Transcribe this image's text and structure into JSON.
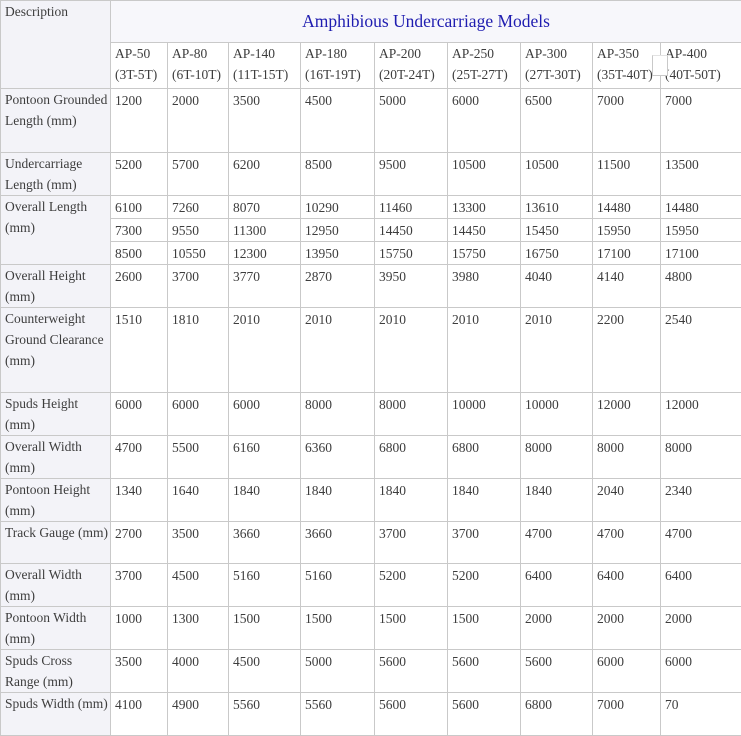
{
  "chart_data": {
    "type": "table",
    "title": "Amphibious Undercarriage Models",
    "corner": "Description",
    "columns": [
      {
        "model": "AP-50",
        "range": "(3T-5T)"
      },
      {
        "model": "AP-80",
        "range": "(6T-10T)"
      },
      {
        "model": "AP-140",
        "range": "(11T-15T)"
      },
      {
        "model": "AP-180",
        "range": "(16T-19T)"
      },
      {
        "model": "AP-200",
        "range": "(20T-24T)"
      },
      {
        "model": "AP-250",
        "range": "(25T-27T)"
      },
      {
        "model": "AP-300",
        "range": "(27T-30T)"
      },
      {
        "model": "AP-350",
        "range": "(35T-40T)"
      },
      {
        "model": "AP-400",
        "range": "(40T-50T)"
      }
    ],
    "rows": [
      {
        "label": "Pontoon Grounded Length (mm)",
        "values": [
          "1200",
          "2000",
          "3500",
          "4500",
          "5000",
          "6000",
          "6500",
          "7000",
          "7000"
        ]
      },
      {
        "label": "Undercarriage Length (mm)",
        "values": [
          "5200",
          "5700",
          "6200",
          "8500",
          "9500",
          "10500",
          "10500",
          "11500",
          "13500"
        ]
      },
      {
        "label": "Overall Length (mm)",
        "sub_rows": [
          [
            "6100",
            "7260",
            "8070",
            "10290",
            "11460",
            "13300",
            "13610",
            "14480",
            "14480"
          ],
          [
            "7300",
            "9550",
            "11300",
            "12950",
            "14450",
            "14450",
            "15450",
            "15950",
            "15950"
          ],
          [
            "8500",
            "10550",
            "12300",
            "13950",
            "15750",
            "15750",
            "16750",
            "17100",
            "17100"
          ]
        ]
      },
      {
        "label": "Overall Height (mm)",
        "values": [
          "2600",
          "3700",
          "3770",
          "2870",
          "3950",
          "3980",
          "4040",
          "4140",
          "4800"
        ]
      },
      {
        "label": "Counterweight Ground Clearance (mm)",
        "values": [
          "1510",
          "1810",
          "2010",
          "2010",
          "2010",
          "2010",
          "2010",
          "2200",
          "2540"
        ]
      },
      {
        "label": "Spuds Height (mm)",
        "values": [
          "6000",
          "6000",
          "6000",
          "8000",
          "8000",
          "10000",
          "10000",
          "12000",
          "12000"
        ]
      },
      {
        "label": "Overall Width (mm)",
        "values": [
          "4700",
          "5500",
          "6160",
          "6360",
          "6800",
          "6800",
          "8000",
          "8000",
          "8000"
        ]
      },
      {
        "label": "Pontoon Height (mm)",
        "values": [
          "1340",
          "1640",
          "1840",
          "1840",
          "1840",
          "1840",
          "1840",
          "2040",
          "2340"
        ]
      },
      {
        "label": "Track Gauge (mm)",
        "values": [
          "2700",
          "3500",
          "3660",
          "3660",
          "3700",
          "3700",
          "4700",
          "4700",
          "4700"
        ]
      },
      {
        "label": "Overall Width (mm)",
        "values": [
          "3700",
          "4500",
          "5160",
          "5160",
          "5200",
          "5200",
          "6400",
          "6400",
          "6400"
        ]
      },
      {
        "label": "Pontoon Width (mm)",
        "values": [
          "1000",
          "1300",
          "1500",
          "1500",
          "1500",
          "1500",
          "2000",
          "2000",
          "2000"
        ]
      },
      {
        "label": "Spuds Cross Range (mm)",
        "values": [
          "3500",
          "4000",
          "4500",
          "5000",
          "5600",
          "5600",
          "5600",
          "6000",
          "6000"
        ]
      },
      {
        "label": "Spuds Width (mm)",
        "values": [
          "4100",
          "4900",
          "5560",
          "5560",
          "5600",
          "5600",
          "6800",
          "7000",
          "70"
        ]
      }
    ],
    "colors": {
      "title_text": "#1f1db0",
      "body_text": "#3d3d3d",
      "label_background": "#f3f3f8",
      "border": "#c9c9c9",
      "cell_background": "#ffffff"
    }
  }
}
